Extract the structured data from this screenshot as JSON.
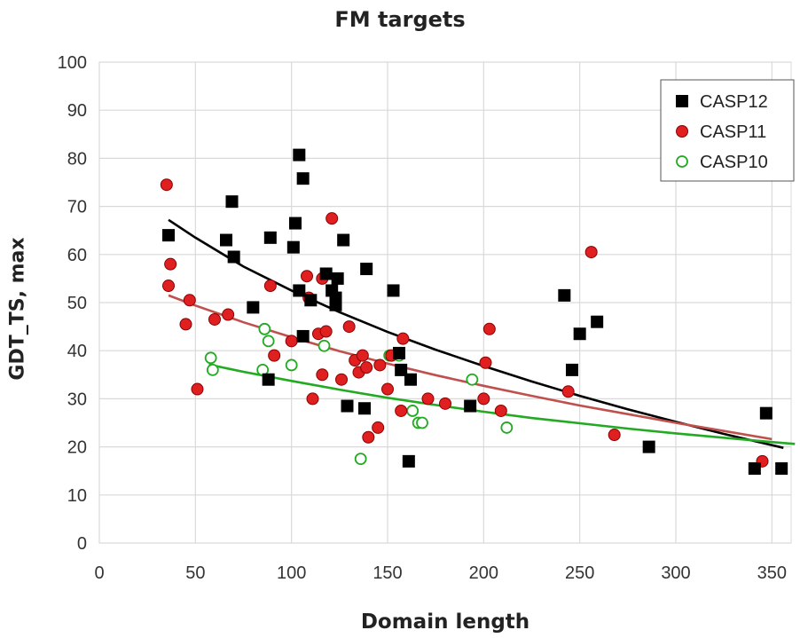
{
  "chart_data": {
    "type": "scatter",
    "title": "FM targets",
    "xlabel": "Domain length",
    "ylabel": "GDT_TS, max",
    "xlim": [
      0,
      360
    ],
    "ylim": [
      0,
      100
    ],
    "x_ticks": [
      0,
      50,
      100,
      150,
      200,
      250,
      300,
      350
    ],
    "y_ticks": [
      0,
      10,
      20,
      30,
      40,
      50,
      60,
      70,
      80,
      90,
      100
    ],
    "grid": true,
    "legend_position": "top-right",
    "series": [
      {
        "name": "CASP12",
        "marker": "square",
        "color": "#000000",
        "trend_color": "#000000",
        "trend": [
          [
            36,
            67.2
          ],
          [
            50,
            63.5
          ],
          [
            75,
            57.5
          ],
          [
            100,
            52.5
          ],
          [
            125,
            48.0
          ],
          [
            150,
            43.9
          ],
          [
            175,
            40.2
          ],
          [
            200,
            36.8
          ],
          [
            225,
            33.6
          ],
          [
            250,
            30.6
          ],
          [
            275,
            27.8
          ],
          [
            300,
            25.2
          ],
          [
            325,
            22.7
          ],
          [
            356,
            19.8
          ]
        ],
        "points": [
          [
            36,
            64
          ],
          [
            66,
            63
          ],
          [
            69,
            71
          ],
          [
            70,
            59.5
          ],
          [
            80,
            49
          ],
          [
            88,
            34
          ],
          [
            89,
            63.5
          ],
          [
            101,
            61.5
          ],
          [
            102,
            66.5
          ],
          [
            104,
            80.7
          ],
          [
            104,
            52.5
          ],
          [
            106,
            75.8
          ],
          [
            106,
            43
          ],
          [
            110,
            50.5
          ],
          [
            118,
            56
          ],
          [
            121,
            52.5
          ],
          [
            123,
            51
          ],
          [
            123,
            49.5
          ],
          [
            124,
            55
          ],
          [
            127,
            63
          ],
          [
            129,
            28.5
          ],
          [
            138,
            28
          ],
          [
            139,
            57
          ],
          [
            153,
            52.5
          ],
          [
            156,
            39.5
          ],
          [
            157,
            36
          ],
          [
            161,
            17
          ],
          [
            162,
            34
          ],
          [
            193,
            28.5
          ],
          [
            242,
            51.5
          ],
          [
            246,
            36
          ],
          [
            250,
            43.5
          ],
          [
            259,
            46
          ],
          [
            286,
            20
          ],
          [
            341,
            15.5
          ],
          [
            347,
            27
          ],
          [
            355,
            15.5
          ]
        ]
      },
      {
        "name": "CASP11",
        "marker": "filled-circle",
        "color": "#e02020",
        "trend_color": "#c0504d",
        "trend": [
          [
            36,
            51.5
          ],
          [
            50,
            49.4
          ],
          [
            75,
            45.9
          ],
          [
            100,
            42.8
          ],
          [
            125,
            39.9
          ],
          [
            150,
            37.3
          ],
          [
            175,
            34.9
          ],
          [
            200,
            32.7
          ],
          [
            225,
            30.6
          ],
          [
            250,
            28.6
          ],
          [
            275,
            26.8
          ],
          [
            300,
            25.0
          ],
          [
            325,
            23.3
          ],
          [
            350,
            21.6
          ]
        ],
        "points": [
          [
            35,
            74.5
          ],
          [
            36,
            53.5
          ],
          [
            37,
            58
          ],
          [
            45,
            45.5
          ],
          [
            47,
            50.5
          ],
          [
            51,
            32
          ],
          [
            60,
            46.5
          ],
          [
            67,
            47.5
          ],
          [
            89,
            53.5
          ],
          [
            91,
            39
          ],
          [
            100,
            42
          ],
          [
            108,
            55.5
          ],
          [
            109,
            51
          ],
          [
            111,
            30
          ],
          [
            114,
            43.5
          ],
          [
            116,
            55
          ],
          [
            116,
            35
          ],
          [
            118,
            44
          ],
          [
            121,
            67.5
          ],
          [
            126,
            34
          ],
          [
            130,
            45
          ],
          [
            133,
            38
          ],
          [
            135,
            35.5
          ],
          [
            137,
            39
          ],
          [
            139,
            36.5
          ],
          [
            140,
            22
          ],
          [
            145,
            24
          ],
          [
            146,
            37
          ],
          [
            150,
            32
          ],
          [
            152,
            39
          ],
          [
            157,
            27.5
          ],
          [
            158,
            42.5
          ],
          [
            171,
            30
          ],
          [
            180,
            29
          ],
          [
            200,
            30
          ],
          [
            201,
            37.5
          ],
          [
            203,
            44.5
          ],
          [
            209,
            27.5
          ],
          [
            244,
            31.5
          ],
          [
            256,
            60.5
          ],
          [
            268,
            22.5
          ],
          [
            345,
            17
          ]
        ]
      },
      {
        "name": "CASP10",
        "marker": "open-circle",
        "color": "#22aa22",
        "trend_color": "#22aa22",
        "trend": [
          [
            57,
            37.1
          ],
          [
            75,
            35.6
          ],
          [
            100,
            33.7
          ],
          [
            125,
            31.9
          ],
          [
            150,
            30.2
          ],
          [
            175,
            28.7
          ],
          [
            200,
            27.3
          ],
          [
            225,
            26.0
          ],
          [
            250,
            24.9
          ],
          [
            275,
            23.8
          ],
          [
            300,
            22.8
          ],
          [
            325,
            21.9
          ],
          [
            350,
            21.0
          ],
          [
            362,
            20.6
          ]
        ],
        "points": [
          [
            58,
            38.5
          ],
          [
            59,
            36
          ],
          [
            85,
            36
          ],
          [
            86,
            44.5
          ],
          [
            88,
            42
          ],
          [
            100,
            37
          ],
          [
            117,
            41
          ],
          [
            136,
            17.5
          ],
          [
            151,
            39
          ],
          [
            156,
            39
          ],
          [
            163,
            27.5
          ],
          [
            166,
            25
          ],
          [
            168,
            25
          ],
          [
            194,
            34
          ],
          [
            212,
            24
          ]
        ]
      }
    ]
  }
}
